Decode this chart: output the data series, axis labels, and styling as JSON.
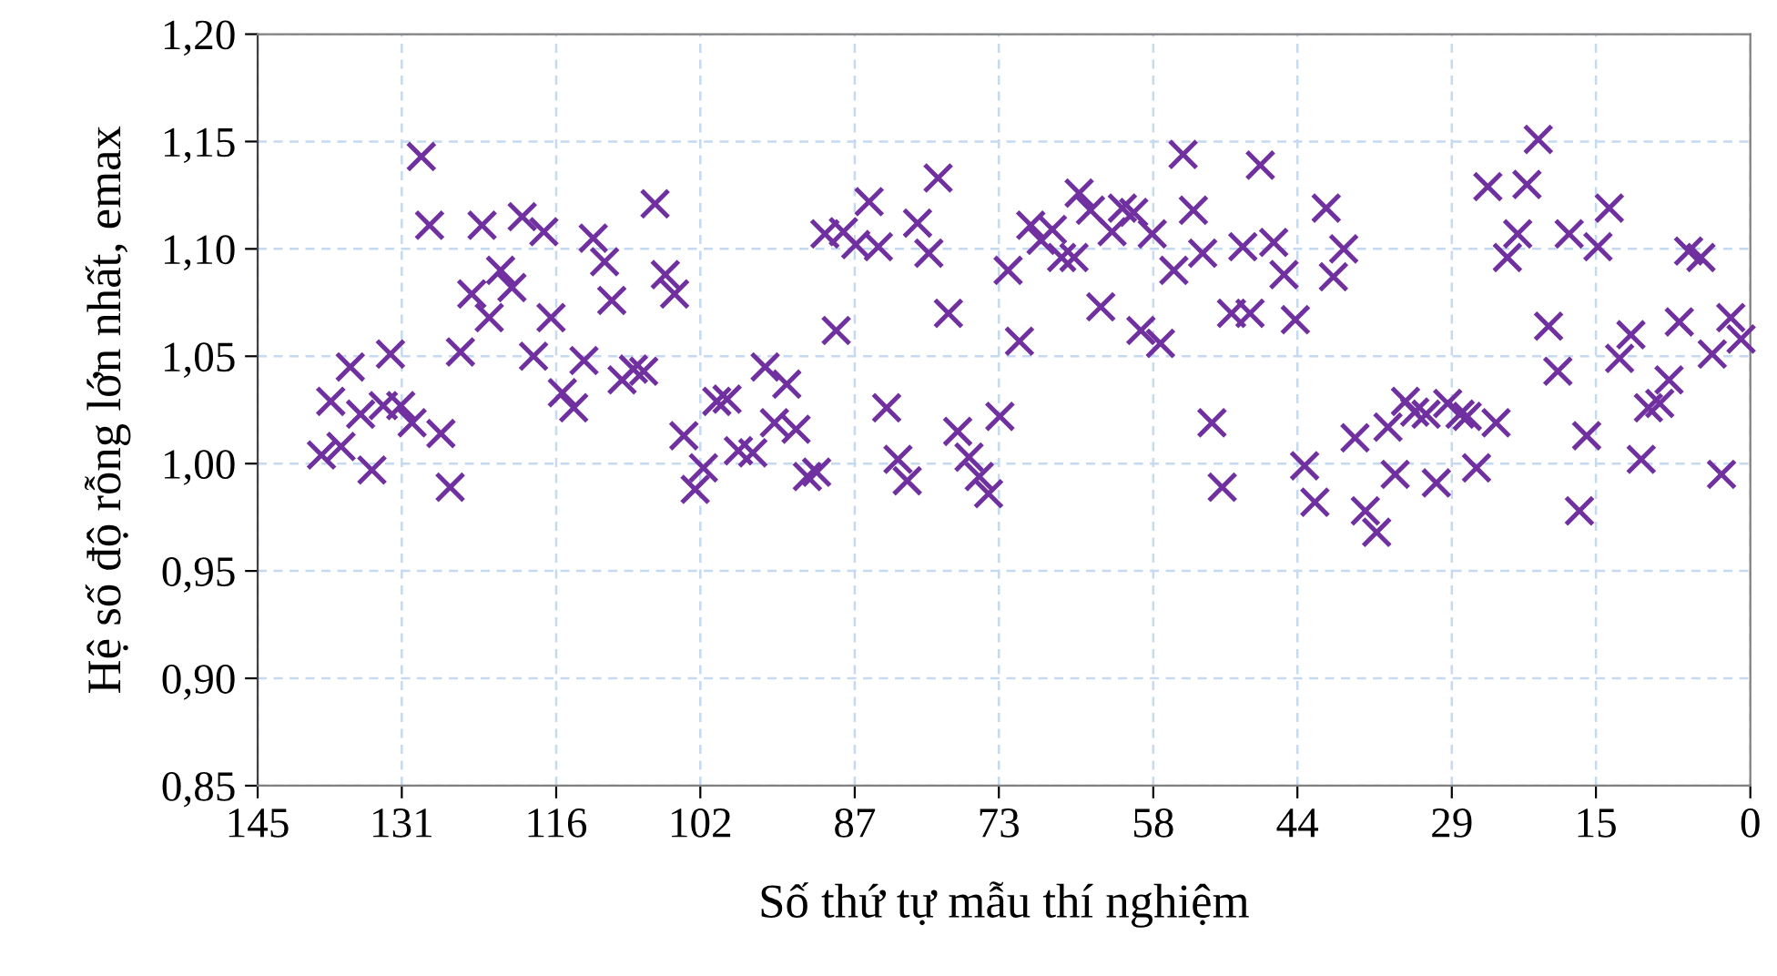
{
  "chart_data": {
    "type": "scatter",
    "xlabel": "Số thứ tự mẫu thí nghiệm",
    "ylabel": "Hệ số độ rỗng lớn nhất, emax",
    "marker": "cross",
    "grid": true,
    "legend": false,
    "xlim": [
      145,
      0
    ],
    "xticks": [
      145,
      131,
      116,
      102,
      87,
      73,
      58,
      44,
      29,
      15,
      0
    ],
    "ylim": [
      0.85,
      1.2
    ],
    "yticks": [
      {
        "value": 0.85,
        "label": "0,85"
      },
      {
        "value": 0.9,
        "label": "0,90"
      },
      {
        "value": 0.95,
        "label": "0,95"
      },
      {
        "value": 1.0,
        "label": "1,00"
      },
      {
        "value": 1.05,
        "label": "1,05"
      },
      {
        "value": 1.1,
        "label": "1,10"
      },
      {
        "value": 1.15,
        "label": "1,15"
      },
      {
        "value": 1.2,
        "label": "1,20"
      }
    ],
    "series": [
      {
        "color": "#7030a0",
        "x": [
          138.8,
          137.9,
          136.9,
          136.0,
          135.0,
          133.9,
          132.8,
          132.1,
          131.1,
          130.0,
          129.1,
          128.3,
          127.2,
          126.3,
          125.3,
          124.2,
          123.2,
          122.5,
          121.4,
          120.3,
          119.3,
          118.2,
          117.2,
          116.5,
          115.4,
          114.3,
          113.3,
          112.4,
          111.3,
          110.6,
          109.6,
          108.5,
          107.5,
          106.4,
          105.4,
          104.5,
          103.6,
          102.5,
          101.7,
          100.4,
          99.4,
          98.3,
          96.9,
          95.7,
          94.8,
          93.6,
          92.7,
          91.6,
          90.7,
          89.9,
          88.8,
          88.1,
          86.9,
          85.6,
          84.7,
          83.9,
          82.8,
          81.9,
          80.9,
          79.8,
          78.9,
          77.9,
          77.0,
          75.9,
          74.9,
          74.0,
          72.9,
          72.1,
          71.0,
          69.9,
          68.9,
          67.8,
          66.9,
          65.7,
          65.2,
          64.1,
          63.1,
          62.0,
          61.0,
          59.9,
          59.2,
          58.1,
          57.3,
          56.0,
          55.1,
          54.1,
          53.2,
          52.3,
          51.3,
          50.4,
          49.3,
          48.6,
          47.6,
          46.3,
          45.3,
          44.2,
          43.3,
          42.3,
          41.2,
          40.5,
          39.5,
          38.4,
          37.4,
          36.3,
          35.2,
          34.5,
          33.5,
          32.6,
          31.5,
          30.5,
          29.4,
          28.2,
          27.5,
          26.6,
          25.5,
          24.7,
          23.6,
          22.6,
          21.7,
          20.6,
          19.6,
          18.7,
          17.6,
          16.6,
          15.9,
          14.8,
          13.7,
          12.7,
          11.6,
          10.6,
          9.9,
          8.8,
          7.9,
          6.9,
          6.0,
          4.8,
          3.7,
          2.8,
          1.9,
          0.9
        ],
        "values": [
          1.004,
          1.029,
          1.008,
          1.045,
          1.023,
          0.997,
          1.027,
          1.051,
          1.027,
          1.019,
          1.143,
          1.111,
          1.014,
          0.989,
          1.052,
          1.079,
          1.111,
          1.068,
          1.09,
          1.082,
          1.115,
          1.05,
          1.108,
          1.068,
          1.033,
          1.026,
          1.048,
          1.105,
          1.094,
          1.076,
          1.039,
          1.044,
          1.043,
          1.121,
          1.088,
          1.079,
          1.013,
          0.988,
          0.998,
          1.029,
          1.03,
          1.006,
          1.005,
          1.045,
          1.019,
          1.037,
          1.016,
          0.994,
          0.996,
          1.107,
          1.062,
          1.108,
          1.102,
          1.122,
          1.101,
          1.026,
          1.002,
          0.992,
          1.112,
          1.098,
          1.133,
          1.07,
          1.015,
          1.003,
          0.994,
          0.986,
          1.022,
          1.09,
          1.057,
          1.111,
          1.104,
          1.109,
          1.096,
          1.096,
          1.126,
          1.118,
          1.073,
          1.108,
          1.119,
          1.117,
          1.062,
          1.107,
          1.056,
          1.09,
          1.144,
          1.118,
          1.098,
          1.019,
          0.989,
          1.07,
          1.101,
          1.07,
          1.139,
          1.103,
          1.088,
          1.067,
          0.999,
          0.982,
          1.119,
          1.087,
          1.1,
          1.012,
          0.978,
          0.968,
          1.017,
          0.995,
          1.029,
          1.024,
          1.023,
          0.991,
          1.028,
          1.023,
          1.022,
          0.998,
          1.129,
          1.019,
          1.096,
          1.107,
          1.13,
          1.151,
          1.064,
          1.043,
          1.107,
          0.978,
          1.013,
          1.101,
          1.119,
          1.049,
          1.06,
          1.002,
          1.026,
          1.028,
          1.039,
          1.066,
          1.099,
          1.096,
          1.051,
          0.995,
          1.068,
          1.058
        ]
      }
    ]
  }
}
